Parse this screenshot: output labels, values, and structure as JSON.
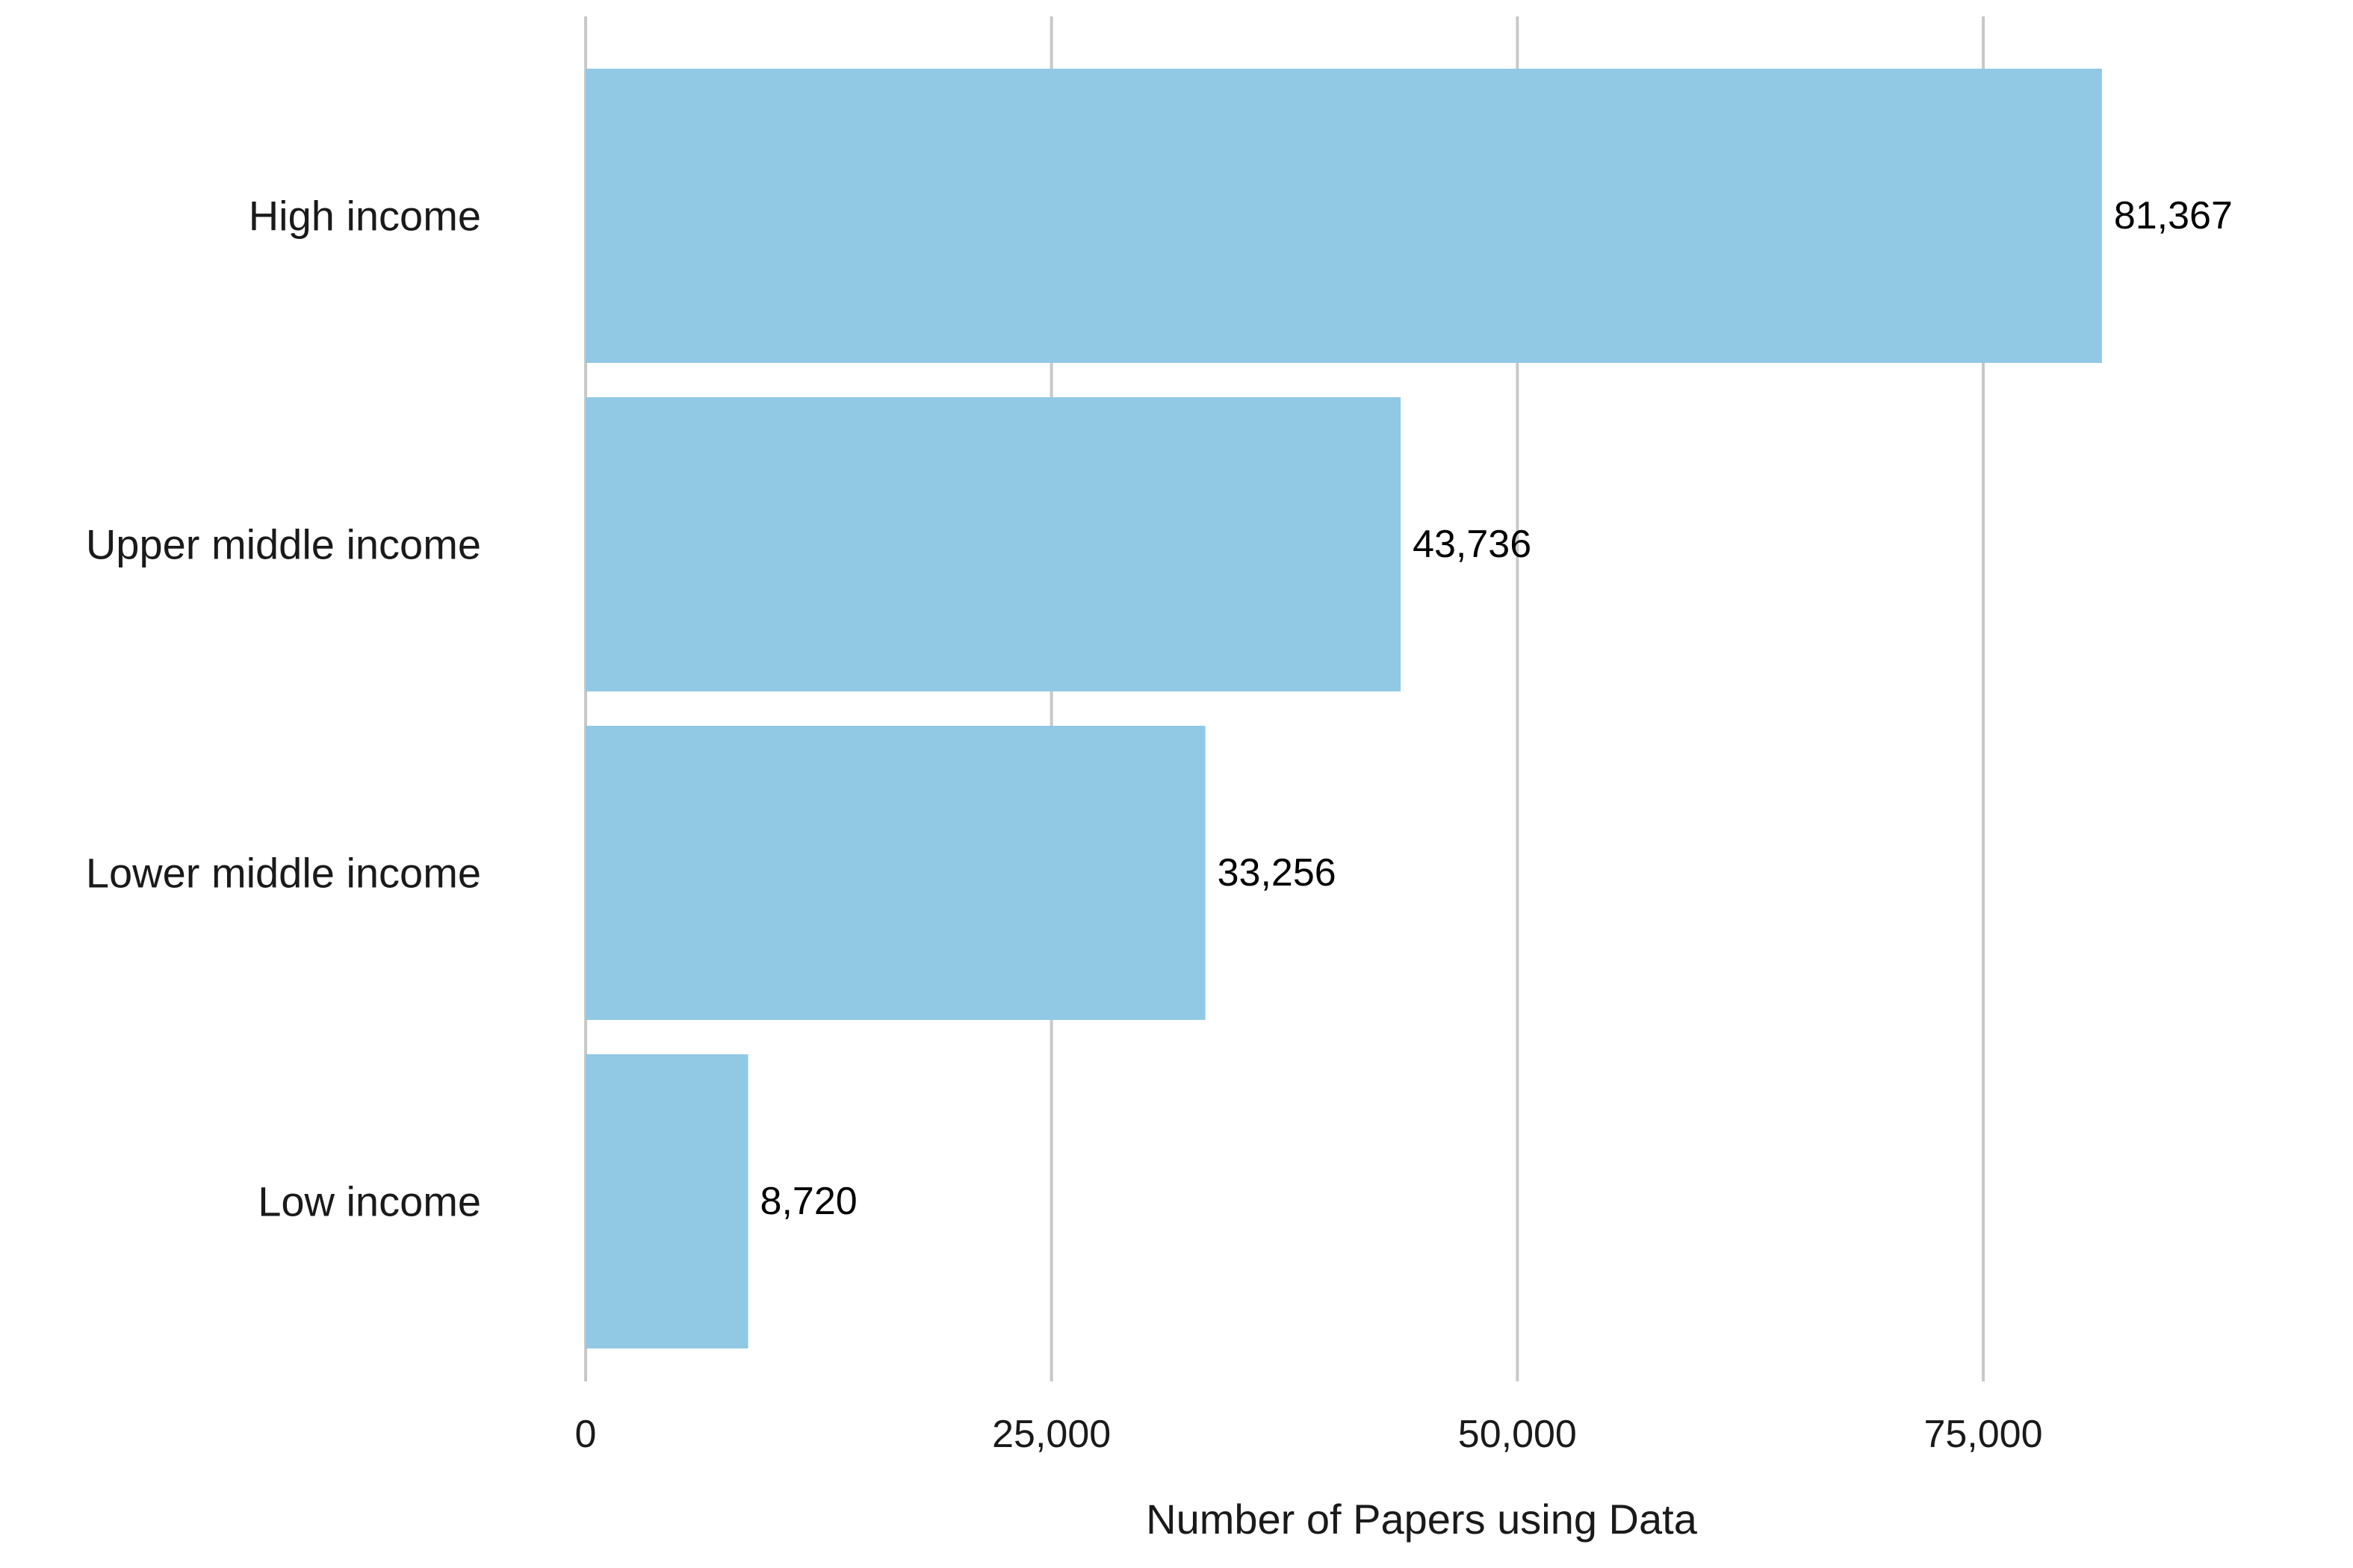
{
  "chart_data": {
    "type": "bar",
    "orientation": "horizontal",
    "title": "",
    "xlabel": "Number of Papers using Data",
    "ylabel": "",
    "categories": [
      "High income",
      "Upper middle income",
      "Lower middle income",
      "Low income"
    ],
    "values": [
      81367,
      43736,
      33256,
      8720
    ],
    "value_labels": [
      "81,367",
      "43,736",
      "33,256",
      "8,720"
    ],
    "xlim": [
      0,
      90000
    ],
    "x_ticks": [
      0,
      25000,
      50000,
      75000
    ],
    "x_tick_labels": [
      "0",
      "25,000",
      "50,000",
      "75,000"
    ],
    "grid": "vertical",
    "legend": "none",
    "colors": {
      "bar": "#91c9e5",
      "grid": "#c8c8c8"
    }
  }
}
